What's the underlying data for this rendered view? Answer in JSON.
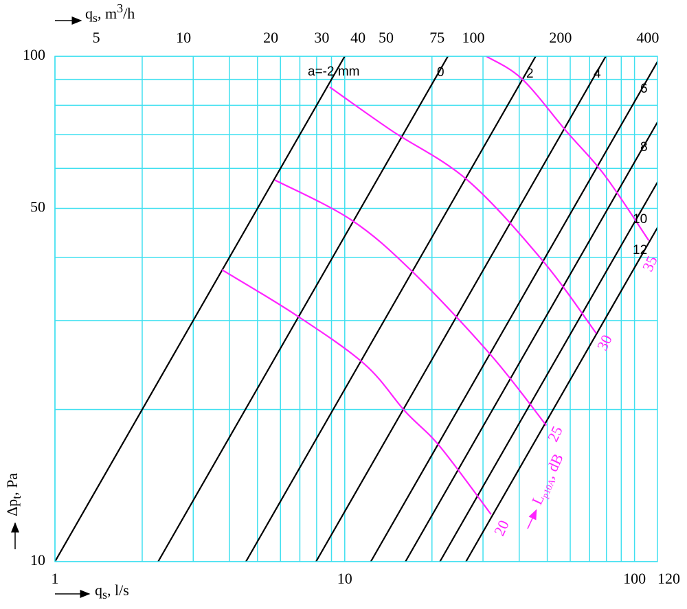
{
  "chart_data": {
    "type": "line",
    "log_x": true,
    "log_y": true,
    "grid": true,
    "grid_color": "#40e0f0",
    "xlabel": {
      "symbol": "q",
      "subscript": "s",
      "unit": ", l/s"
    },
    "x2label": {
      "symbol": "q",
      "subscript": "s",
      "unit": ", m",
      "power": "3",
      "unit2": "/h"
    },
    "ylabel": {
      "symbol": "Δp",
      "subscript": "t",
      "unit": ", Pa"
    },
    "xlim": [
      1,
      120
    ],
    "xticks": [
      1,
      10,
      100,
      120
    ],
    "xgrid": [
      1,
      2,
      3,
      4,
      5,
      6,
      7,
      8,
      9,
      10,
      20,
      30,
      40,
      50,
      60,
      70,
      80,
      90,
      100
    ],
    "x2lim": [
      3.6,
      432
    ],
    "x2ticks": [
      5,
      10,
      20,
      30,
      40,
      50,
      75,
      100,
      200,
      400
    ],
    "ylim": [
      10,
      100
    ],
    "yticks": [
      10,
      50,
      100
    ],
    "ygrid": [
      10,
      20,
      30,
      40,
      50,
      60,
      70,
      80,
      90,
      100
    ],
    "series": [
      {
        "name": "a=-2 mm",
        "color": "#000000",
        "x": [
          1,
          10
        ],
        "y": [
          10,
          100
        ]
      },
      {
        "name": "0",
        "color": "#000000",
        "x": [
          2.27,
          22.7
        ],
        "y": [
          10,
          100
        ]
      },
      {
        "name": "2",
        "color": "#000000",
        "x": [
          4.56,
          45.6
        ],
        "y": [
          10,
          100
        ]
      },
      {
        "name": "4",
        "color": "#000000",
        "x": [
          7.96,
          79.6
        ],
        "y": [
          10,
          100
        ]
      },
      {
        "name": "6",
        "color": "#000000",
        "x": [
          12.3,
          123
        ],
        "y": [
          10,
          100
        ]
      },
      {
        "name": "8",
        "color": "#000000",
        "x": [
          16.2,
          162
        ],
        "y": [
          10,
          100
        ]
      },
      {
        "name": "10",
        "color": "#000000",
        "x": [
          21.3,
          213
        ],
        "y": [
          10,
          100
        ]
      },
      {
        "name": "12",
        "color": "#000000",
        "x": [
          26.2,
          262
        ],
        "y": [
          10,
          100
        ]
      }
    ],
    "noise_series": [
      {
        "name": "20",
        "color": "#ff22ff",
        "x": [
          3.77,
          6.76,
          11.7,
          16.2,
          21.3,
          32.0
        ],
        "y": [
          37.8,
          30.8,
          24.6,
          19.8,
          16.9,
          12.4
        ]
      },
      {
        "name": "25",
        "color": "#ff22ff",
        "x": [
          5.74,
          10.5,
          17.1,
          32.0,
          49.6
        ],
        "y": [
          56.9,
          47.5,
          37.5,
          25.6,
          18.6
        ]
      },
      {
        "name": "30",
        "color": "#ff22ff",
        "x": [
          8.88,
          14.5,
          26.5,
          48.2,
          73.8
        ],
        "y": [
          86.9,
          71.3,
          56.9,
          39.4,
          28.3
        ]
      },
      {
        "name": "35",
        "color": "#ff22ff",
        "x": [
          30.8,
          40.9,
          58.4,
          78.8,
          112
        ],
        "y": [
          100,
          90.2,
          70.9,
          58.2,
          43.2
        ]
      }
    ],
    "annotation": {
      "symbol": "L",
      "subscript": "p10A",
      "unit": ", dB"
    }
  }
}
